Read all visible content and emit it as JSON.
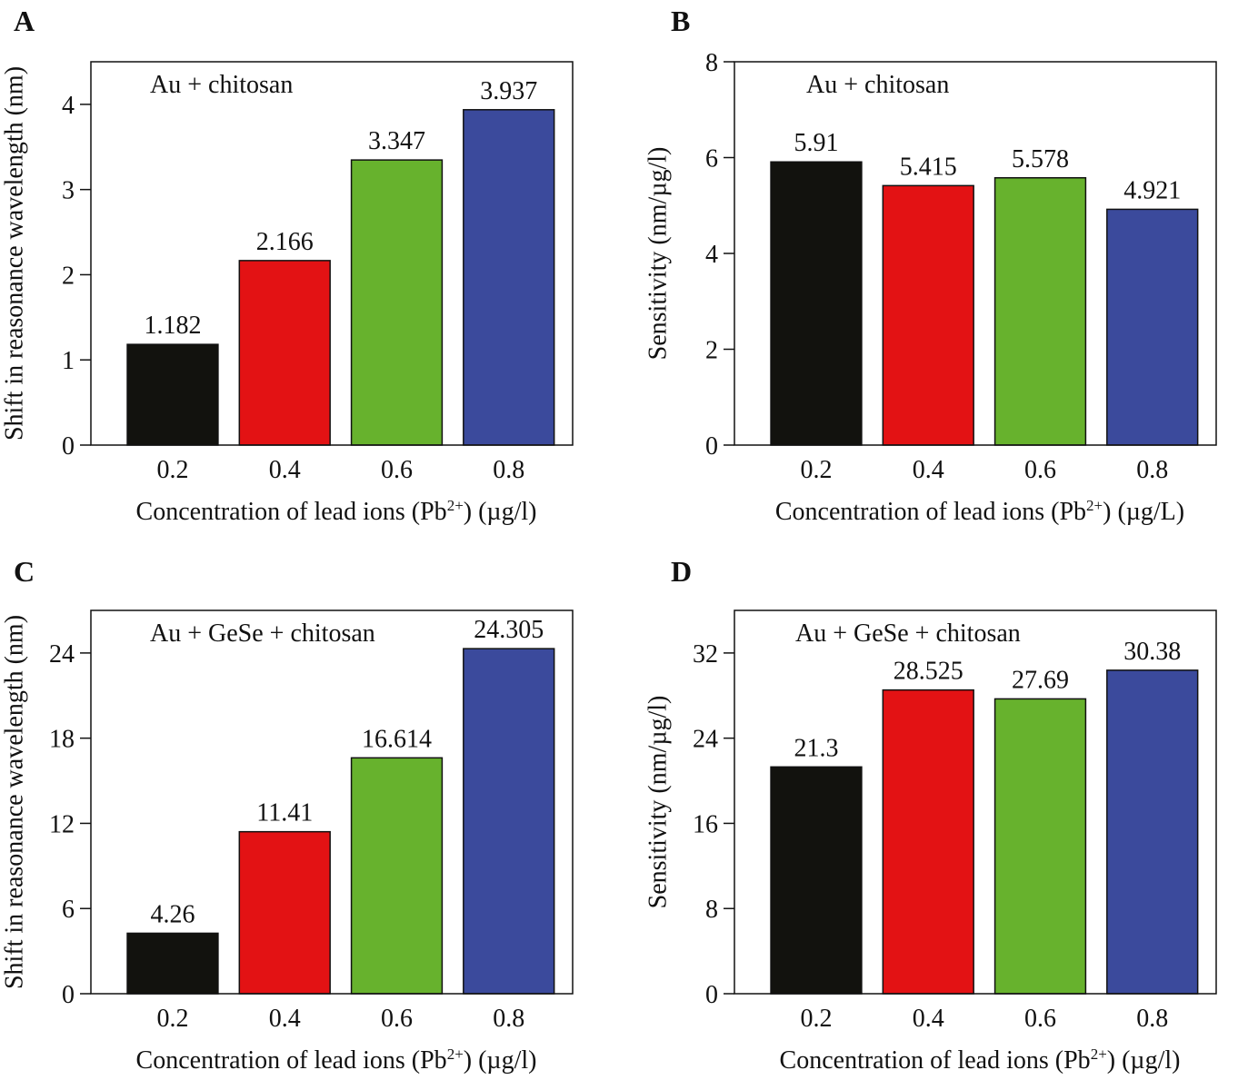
{
  "chart_data": [
    {
      "type": "bar",
      "panel_label": "A",
      "annotation": "Au + chitosan",
      "ylabel": "Shift in reasonance wavelength (nm)",
      "xlabel": {
        "text": "Concentration of lead ions (Pb",
        "superscript": "2+",
        "after": ") (µg/l)"
      },
      "categories": [
        "0.2",
        "0.4",
        "0.6",
        "0.8"
      ],
      "values": [
        1.182,
        2.166,
        3.347,
        3.937
      ],
      "colors": [
        "#12120e",
        "#e31214",
        "#67b22d",
        "#3b4a9c"
      ],
      "ylim": [
        0,
        4.5
      ],
      "yticks": [
        0,
        1,
        2,
        3,
        4
      ]
    },
    {
      "type": "bar",
      "panel_label": "B",
      "annotation": "Au + chitosan",
      "ylabel": "Sensitivity (nm/µg/l)",
      "xlabel": {
        "text": "Concentration of lead ions (Pb",
        "superscript": "2+",
        "after": ") (µg/L)"
      },
      "categories": [
        "0.2",
        "0.4",
        "0.6",
        "0.8"
      ],
      "values": [
        5.91,
        5.415,
        5.578,
        4.921
      ],
      "colors": [
        "#12120e",
        "#e31214",
        "#67b22d",
        "#3b4a9c"
      ],
      "ylim": [
        0,
        8
      ],
      "yticks": [
        0,
        2,
        4,
        6,
        8
      ]
    },
    {
      "type": "bar",
      "panel_label": "C",
      "annotation": "Au + GeSe + chitosan",
      "ylabel": "Shift in reasonance wavelength (nm)",
      "xlabel": {
        "text": "Concentration of lead ions (Pb",
        "superscript": "2+",
        "after": ") (µg/l)"
      },
      "categories": [
        "0.2",
        "0.4",
        "0.6",
        "0.8"
      ],
      "values": [
        4.26,
        11.41,
        16.614,
        24.305
      ],
      "colors": [
        "#12120e",
        "#e31214",
        "#67b22d",
        "#3b4a9c"
      ],
      "ylim": [
        0,
        27
      ],
      "yticks": [
        0,
        6,
        12,
        18,
        24
      ]
    },
    {
      "type": "bar",
      "panel_label": "D",
      "annotation": "Au + GeSe + chitosan",
      "ylabel": "Sensitivity (nm/µg/l)",
      "xlabel": {
        "text": "Concentration of lead ions (Pb",
        "superscript": "2+",
        "after": ") (µg/l)"
      },
      "categories": [
        "0.2",
        "0.4",
        "0.6",
        "0.8"
      ],
      "values": [
        21.3,
        28.525,
        27.69,
        30.38
      ],
      "colors": [
        "#12120e",
        "#e31214",
        "#67b22d",
        "#3b4a9c"
      ],
      "ylim": [
        0,
        36
      ],
      "yticks": [
        0,
        8,
        16,
        24,
        32
      ]
    }
  ]
}
